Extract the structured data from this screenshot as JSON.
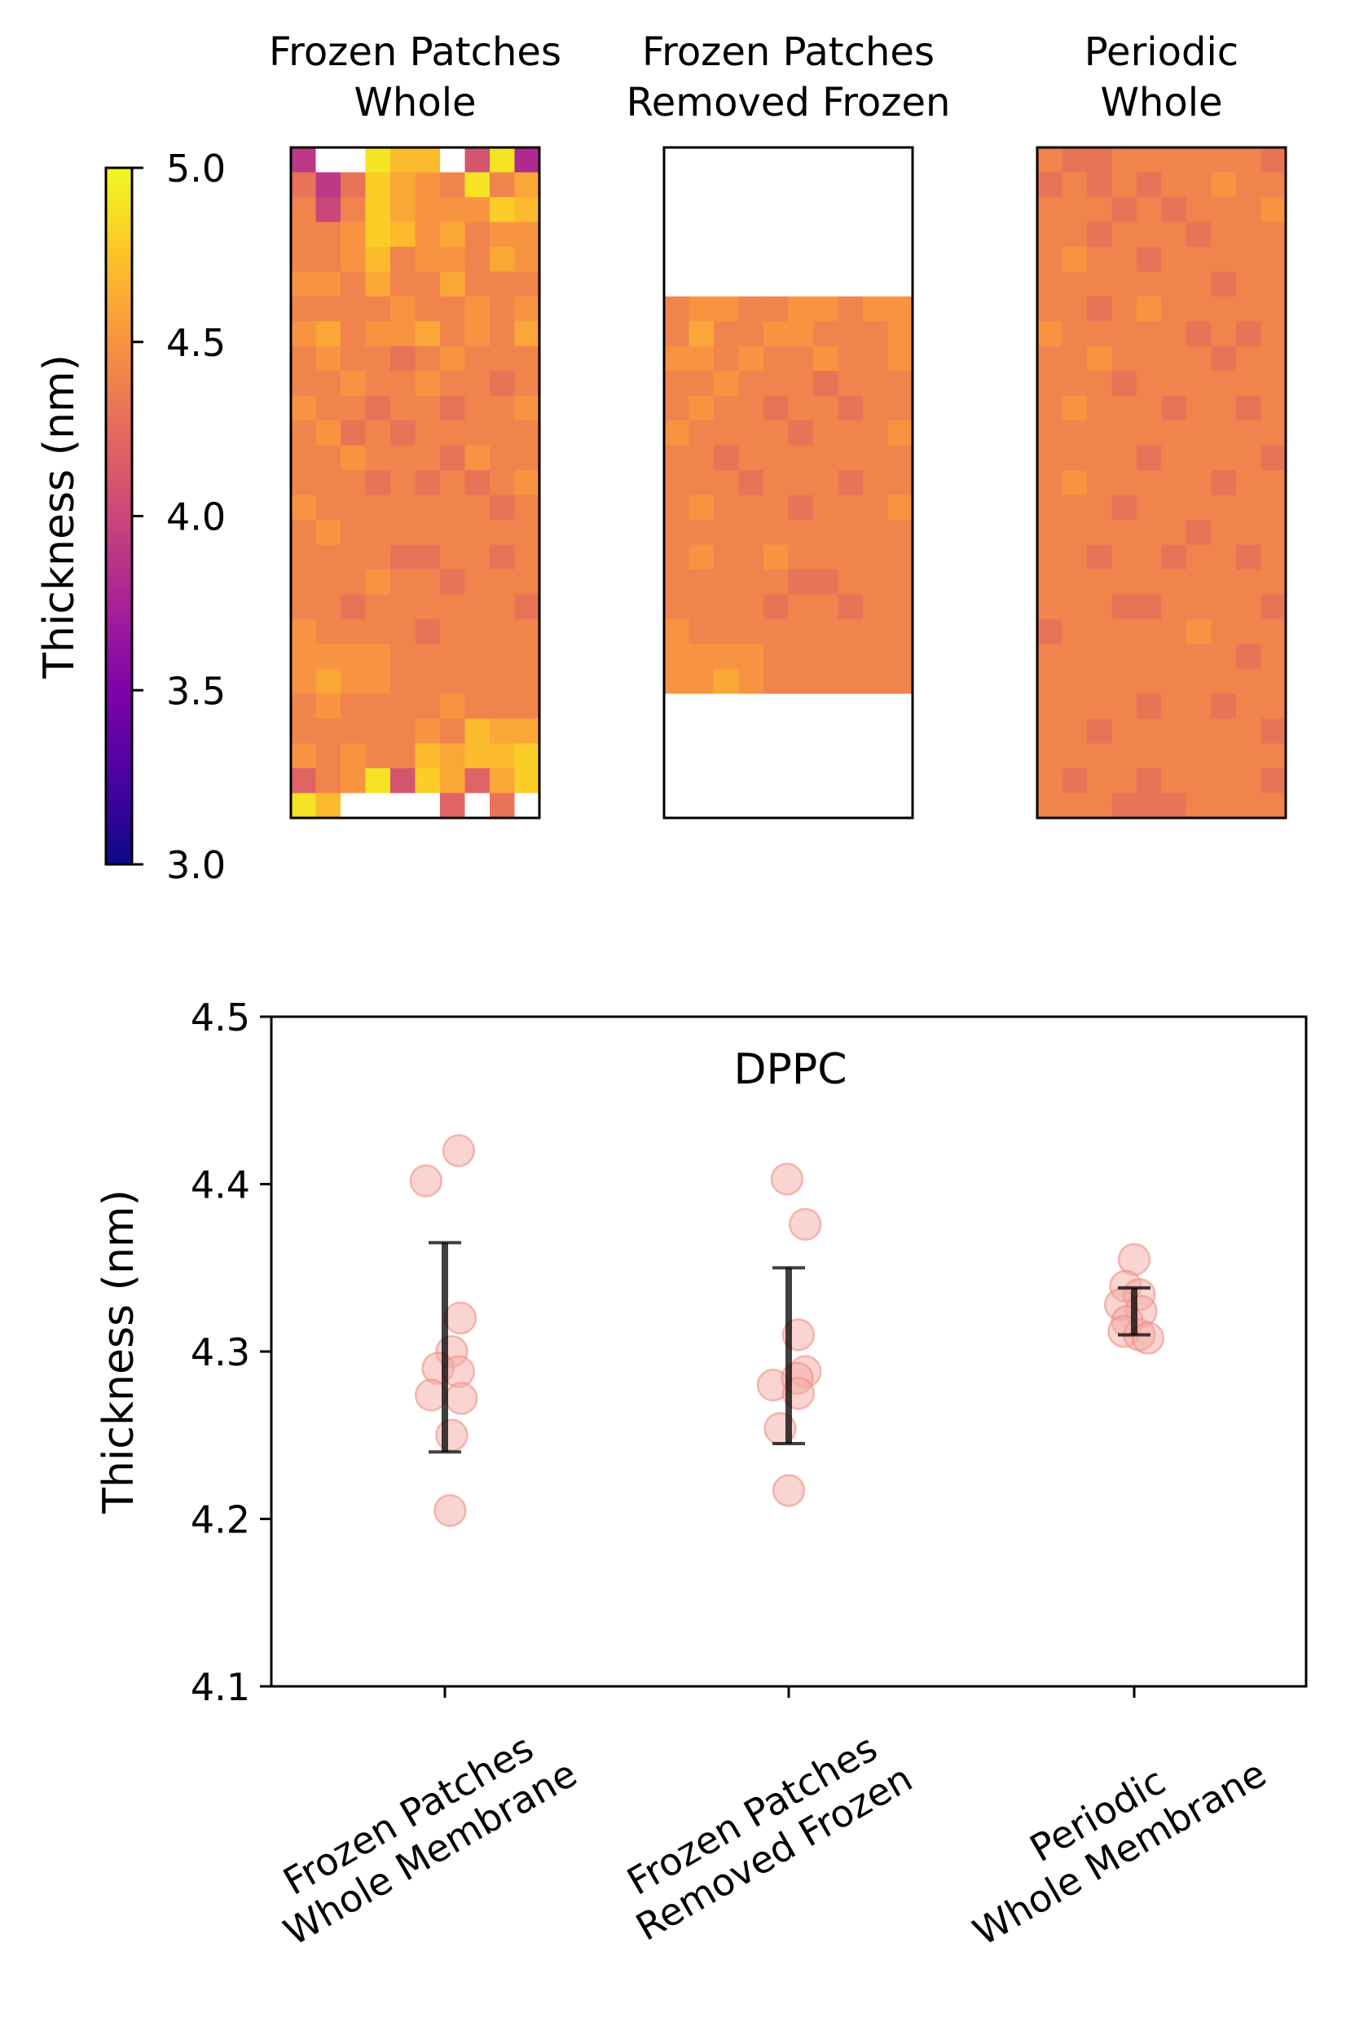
{
  "colors": {
    "point_fill": "#f4a9a3",
    "point_stroke": "#ef8f86",
    "errorbar": "#000000",
    "missing_cell": "#ffffff"
  },
  "colorbar": {
    "label": "Thickness (nm)",
    "vmin": 3.0,
    "vmax": 5.0,
    "ticks": [
      5.0,
      4.5,
      4.0,
      3.5,
      3.0
    ],
    "tick_labels": [
      "5.0",
      "4.5",
      "4.0",
      "3.5",
      "3.0"
    ],
    "colormap": "plasma"
  },
  "chart_data": [
    {
      "type": "heatmap",
      "title_lines": [
        "Frozen Patches",
        "Whole"
      ],
      "values": [
        [
          3.9,
          null,
          null,
          4.9,
          4.7,
          4.7,
          null,
          4.1,
          4.9,
          3.8
        ],
        [
          4.3,
          3.9,
          4.3,
          4.8,
          4.6,
          4.5,
          4.4,
          4.9,
          4.4,
          4.6
        ],
        [
          4.4,
          4.0,
          4.4,
          4.8,
          4.6,
          4.5,
          4.5,
          4.5,
          4.8,
          4.7
        ],
        [
          4.4,
          4.4,
          4.5,
          4.8,
          4.7,
          4.5,
          4.6,
          4.4,
          4.5,
          4.5
        ],
        [
          4.4,
          4.4,
          4.5,
          4.7,
          4.4,
          4.5,
          4.5,
          4.4,
          4.6,
          4.5
        ],
        [
          4.5,
          4.5,
          4.4,
          4.6,
          4.4,
          4.4,
          4.6,
          4.4,
          4.4,
          4.4
        ],
        [
          4.4,
          4.4,
          4.4,
          4.4,
          4.5,
          4.4,
          4.4,
          4.5,
          4.4,
          4.5
        ],
        [
          4.5,
          4.6,
          4.4,
          4.5,
          4.5,
          4.6,
          4.4,
          4.5,
          4.4,
          4.6
        ],
        [
          4.4,
          4.5,
          4.4,
          4.4,
          4.3,
          4.4,
          4.5,
          4.4,
          4.4,
          4.4
        ],
        [
          4.4,
          4.4,
          4.5,
          4.4,
          4.4,
          4.5,
          4.4,
          4.4,
          4.3,
          4.4
        ],
        [
          4.5,
          4.4,
          4.4,
          4.3,
          4.4,
          4.4,
          4.3,
          4.4,
          4.4,
          4.5
        ],
        [
          4.4,
          4.5,
          4.3,
          4.4,
          4.3,
          4.4,
          4.4,
          4.4,
          4.4,
          4.4
        ],
        [
          4.4,
          4.4,
          4.5,
          4.4,
          4.4,
          4.4,
          4.3,
          4.5,
          4.4,
          4.4
        ],
        [
          4.4,
          4.4,
          4.4,
          4.3,
          4.4,
          4.3,
          4.4,
          4.3,
          4.4,
          4.5
        ],
        [
          4.5,
          4.4,
          4.4,
          4.4,
          4.4,
          4.4,
          4.4,
          4.4,
          4.3,
          4.4
        ],
        [
          4.4,
          4.5,
          4.4,
          4.4,
          4.4,
          4.4,
          4.4,
          4.4,
          4.4,
          4.4
        ],
        [
          4.4,
          4.4,
          4.4,
          4.4,
          4.3,
          4.3,
          4.4,
          4.4,
          4.3,
          4.4
        ],
        [
          4.4,
          4.4,
          4.4,
          4.5,
          4.4,
          4.4,
          4.3,
          4.4,
          4.4,
          4.4
        ],
        [
          4.4,
          4.4,
          4.3,
          4.4,
          4.4,
          4.4,
          4.4,
          4.4,
          4.4,
          4.3
        ],
        [
          4.5,
          4.4,
          4.4,
          4.4,
          4.4,
          4.3,
          4.4,
          4.4,
          4.4,
          4.4
        ],
        [
          4.5,
          4.5,
          4.5,
          4.5,
          4.4,
          4.4,
          4.4,
          4.4,
          4.4,
          4.4
        ],
        [
          4.5,
          4.6,
          4.5,
          4.5,
          4.4,
          4.4,
          4.4,
          4.4,
          4.4,
          4.4
        ],
        [
          4.4,
          4.5,
          4.4,
          4.4,
          4.4,
          4.4,
          4.5,
          4.4,
          4.4,
          4.4
        ],
        [
          4.4,
          4.4,
          4.4,
          4.4,
          4.4,
          4.5,
          4.4,
          4.7,
          4.6,
          4.6
        ],
        [
          4.5,
          4.4,
          4.5,
          4.4,
          4.4,
          4.7,
          4.6,
          4.7,
          4.7,
          4.8
        ],
        [
          4.2,
          4.4,
          4.5,
          4.9,
          4.1,
          4.8,
          4.6,
          4.2,
          4.6,
          4.8
        ],
        [
          4.9,
          4.7,
          null,
          null,
          null,
          null,
          4.2,
          null,
          4.3,
          null
        ]
      ]
    },
    {
      "type": "heatmap",
      "title_lines": [
        "Frozen Patches",
        "Removed Frozen"
      ],
      "values": [
        [
          null,
          null,
          null,
          null,
          null,
          null,
          null,
          null,
          null,
          null
        ],
        [
          null,
          null,
          null,
          null,
          null,
          null,
          null,
          null,
          null,
          null
        ],
        [
          null,
          null,
          null,
          null,
          null,
          null,
          null,
          null,
          null,
          null
        ],
        [
          null,
          null,
          null,
          null,
          null,
          null,
          null,
          null,
          null,
          null
        ],
        [
          null,
          null,
          null,
          null,
          null,
          null,
          null,
          null,
          null,
          null
        ],
        [
          null,
          null,
          null,
          null,
          null,
          null,
          null,
          null,
          null,
          null
        ],
        [
          4.4,
          4.5,
          4.5,
          4.4,
          4.4,
          4.5,
          4.5,
          4.4,
          4.5,
          4.5
        ],
        [
          4.4,
          4.6,
          4.4,
          4.4,
          4.5,
          4.5,
          4.4,
          4.4,
          4.4,
          4.5
        ],
        [
          4.5,
          4.5,
          4.4,
          4.5,
          4.4,
          4.4,
          4.5,
          4.4,
          4.4,
          4.5
        ],
        [
          4.4,
          4.4,
          4.5,
          4.4,
          4.4,
          4.4,
          4.3,
          4.4,
          4.4,
          4.4
        ],
        [
          4.4,
          4.5,
          4.4,
          4.4,
          4.3,
          4.4,
          4.4,
          4.3,
          4.4,
          4.4
        ],
        [
          4.5,
          4.4,
          4.4,
          4.4,
          4.4,
          4.3,
          4.4,
          4.4,
          4.4,
          4.5
        ],
        [
          4.4,
          4.4,
          4.3,
          4.4,
          4.4,
          4.4,
          4.4,
          4.4,
          4.4,
          4.4
        ],
        [
          4.4,
          4.4,
          4.4,
          4.3,
          4.4,
          4.4,
          4.4,
          4.3,
          4.4,
          4.4
        ],
        [
          4.4,
          4.5,
          4.4,
          4.4,
          4.4,
          4.3,
          4.4,
          4.4,
          4.4,
          4.5
        ],
        [
          4.4,
          4.4,
          4.4,
          4.4,
          4.4,
          4.4,
          4.4,
          4.4,
          4.4,
          4.4
        ],
        [
          4.4,
          4.5,
          4.4,
          4.4,
          4.5,
          4.4,
          4.4,
          4.4,
          4.4,
          4.4
        ],
        [
          4.4,
          4.4,
          4.4,
          4.4,
          4.4,
          4.3,
          4.3,
          4.4,
          4.4,
          4.4
        ],
        [
          4.4,
          4.4,
          4.4,
          4.4,
          4.3,
          4.4,
          4.4,
          4.3,
          4.4,
          4.4
        ],
        [
          4.5,
          4.4,
          4.4,
          4.4,
          4.4,
          4.4,
          4.4,
          4.4,
          4.4,
          4.4
        ],
        [
          4.5,
          4.5,
          4.5,
          4.5,
          4.4,
          4.4,
          4.4,
          4.4,
          4.4,
          4.4
        ],
        [
          4.5,
          4.5,
          4.6,
          4.5,
          4.4,
          4.4,
          4.4,
          4.4,
          4.4,
          4.4
        ],
        [
          null,
          null,
          null,
          null,
          null,
          null,
          null,
          null,
          null,
          null
        ],
        [
          null,
          null,
          null,
          null,
          null,
          null,
          null,
          null,
          null,
          null
        ],
        [
          null,
          null,
          null,
          null,
          null,
          null,
          null,
          null,
          null,
          null
        ],
        [
          null,
          null,
          null,
          null,
          null,
          null,
          null,
          null,
          null,
          null
        ],
        [
          null,
          null,
          null,
          null,
          null,
          null,
          null,
          null,
          null,
          null
        ]
      ]
    },
    {
      "type": "heatmap",
      "title_lines": [
        "Periodic",
        "Whole"
      ],
      "values": [
        [
          4.4,
          4.3,
          4.3,
          4.4,
          4.4,
          4.4,
          4.4,
          4.4,
          4.4,
          4.3
        ],
        [
          4.3,
          4.4,
          4.3,
          4.4,
          4.3,
          4.4,
          4.4,
          4.5,
          4.4,
          4.4
        ],
        [
          4.4,
          4.4,
          4.4,
          4.3,
          4.4,
          4.3,
          4.4,
          4.4,
          4.4,
          4.5
        ],
        [
          4.4,
          4.4,
          4.3,
          4.4,
          4.4,
          4.4,
          4.3,
          4.4,
          4.4,
          4.4
        ],
        [
          4.4,
          4.5,
          4.4,
          4.4,
          4.3,
          4.4,
          4.4,
          4.4,
          4.4,
          4.4
        ],
        [
          4.4,
          4.4,
          4.4,
          4.4,
          4.4,
          4.4,
          4.4,
          4.3,
          4.4,
          4.4
        ],
        [
          4.4,
          4.4,
          4.3,
          4.4,
          4.5,
          4.4,
          4.4,
          4.4,
          4.4,
          4.4
        ],
        [
          4.5,
          4.4,
          4.4,
          4.4,
          4.4,
          4.4,
          4.3,
          4.4,
          4.3,
          4.4
        ],
        [
          4.4,
          4.4,
          4.5,
          4.4,
          4.4,
          4.4,
          4.4,
          4.3,
          4.4,
          4.4
        ],
        [
          4.4,
          4.4,
          4.4,
          4.3,
          4.4,
          4.4,
          4.4,
          4.4,
          4.4,
          4.4
        ],
        [
          4.4,
          4.5,
          4.4,
          4.4,
          4.4,
          4.3,
          4.4,
          4.4,
          4.3,
          4.4
        ],
        [
          4.4,
          4.4,
          4.4,
          4.4,
          4.4,
          4.4,
          4.4,
          4.4,
          4.4,
          4.4
        ],
        [
          4.4,
          4.4,
          4.4,
          4.4,
          4.3,
          4.4,
          4.4,
          4.4,
          4.4,
          4.3
        ],
        [
          4.4,
          4.5,
          4.4,
          4.4,
          4.4,
          4.4,
          4.4,
          4.3,
          4.4,
          4.4
        ],
        [
          4.4,
          4.4,
          4.4,
          4.3,
          4.4,
          4.4,
          4.4,
          4.4,
          4.4,
          4.4
        ],
        [
          4.4,
          4.4,
          4.4,
          4.4,
          4.4,
          4.4,
          4.3,
          4.4,
          4.4,
          4.4
        ],
        [
          4.4,
          4.4,
          4.3,
          4.4,
          4.4,
          4.3,
          4.4,
          4.4,
          4.3,
          4.4
        ],
        [
          4.4,
          4.4,
          4.4,
          4.4,
          4.4,
          4.4,
          4.4,
          4.4,
          4.4,
          4.4
        ],
        [
          4.4,
          4.4,
          4.4,
          4.3,
          4.3,
          4.4,
          4.4,
          4.4,
          4.4,
          4.3
        ],
        [
          4.3,
          4.4,
          4.4,
          4.4,
          4.4,
          4.4,
          4.5,
          4.4,
          4.4,
          4.4
        ],
        [
          4.4,
          4.4,
          4.4,
          4.4,
          4.4,
          4.4,
          4.4,
          4.4,
          4.3,
          4.4
        ],
        [
          4.4,
          4.4,
          4.4,
          4.4,
          4.4,
          4.4,
          4.4,
          4.4,
          4.4,
          4.4
        ],
        [
          4.4,
          4.4,
          4.4,
          4.4,
          4.3,
          4.4,
          4.4,
          4.3,
          4.4,
          4.4
        ],
        [
          4.4,
          4.4,
          4.3,
          4.4,
          4.4,
          4.4,
          4.4,
          4.4,
          4.4,
          4.3
        ],
        [
          4.4,
          4.4,
          4.4,
          4.4,
          4.4,
          4.4,
          4.4,
          4.4,
          4.4,
          4.4
        ],
        [
          4.4,
          4.3,
          4.4,
          4.4,
          4.3,
          4.4,
          4.4,
          4.4,
          4.4,
          4.3
        ],
        [
          4.4,
          4.4,
          4.4,
          4.3,
          4.3,
          4.3,
          4.4,
          4.4,
          4.4,
          4.4
        ]
      ]
    },
    {
      "type": "scatter",
      "title": "DPPC",
      "ylabel": "Thickness (nm)",
      "ylim": [
        4.1,
        4.5
      ],
      "yticks": [
        4.5,
        4.4,
        4.3,
        4.2,
        4.1
      ],
      "ytick_labels": [
        "4.5",
        "4.4",
        "4.3",
        "4.2",
        "4.1"
      ],
      "categories": [
        {
          "lines": [
            "Frozen Patches",
            "Whole Membrane"
          ]
        },
        {
          "lines": [
            "Frozen Patches",
            "Removed Frozen"
          ]
        },
        {
          "lines": [
            "Periodic",
            "Whole Membrane"
          ]
        }
      ],
      "groups": [
        {
          "points": [
            {
              "offset": -0.055,
              "y": 4.402
            },
            {
              "offset": 0.04,
              "y": 4.42
            },
            {
              "offset": 0.045,
              "y": 4.32
            },
            {
              "offset": 0.02,
              "y": 4.3
            },
            {
              "offset": -0.02,
              "y": 4.29
            },
            {
              "offset": 0.04,
              "y": 4.288
            },
            {
              "offset": -0.04,
              "y": 4.274
            },
            {
              "offset": 0.048,
              "y": 4.272
            },
            {
              "offset": 0.02,
              "y": 4.25
            },
            {
              "offset": 0.015,
              "y": 4.205
            }
          ],
          "mean": 4.302,
          "err_low": 4.24,
          "err_high": 4.365
        },
        {
          "points": [
            {
              "offset": -0.005,
              "y": 4.403
            },
            {
              "offset": 0.048,
              "y": 4.376
            },
            {
              "offset": 0.028,
              "y": 4.31
            },
            {
              "offset": 0.048,
              "y": 4.288
            },
            {
              "offset": -0.045,
              "y": 4.28
            },
            {
              "offset": 0.025,
              "y": 4.284
            },
            {
              "offset": 0.028,
              "y": 4.275
            },
            {
              "offset": -0.025,
              "y": 4.254
            },
            {
              "offset": 0.0,
              "y": 4.217
            }
          ],
          "mean": 4.297,
          "err_low": 4.245,
          "err_high": 4.35
        },
        {
          "points": [
            {
              "offset": 0.0,
              "y": 4.355
            },
            {
              "offset": -0.025,
              "y": 4.339
            },
            {
              "offset": 0.015,
              "y": 4.334
            },
            {
              "offset": -0.04,
              "y": 4.328
            },
            {
              "offset": 0.02,
              "y": 4.324
            },
            {
              "offset": -0.02,
              "y": 4.318
            },
            {
              "offset": -0.03,
              "y": 4.312
            },
            {
              "offset": 0.015,
              "y": 4.31
            },
            {
              "offset": 0.04,
              "y": 4.308
            }
          ],
          "mean": 4.324,
          "err_low": 4.31,
          "err_high": 4.338
        }
      ]
    }
  ]
}
